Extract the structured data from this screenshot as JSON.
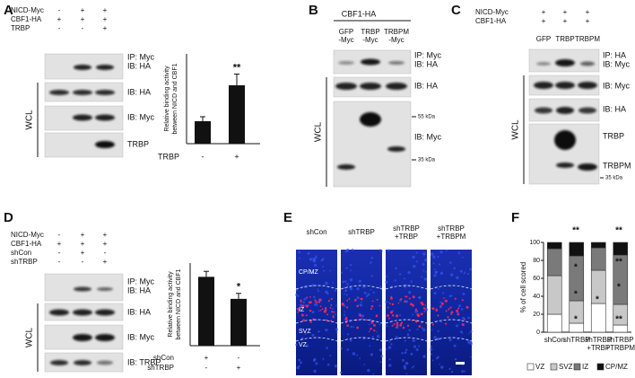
{
  "panel_a": {
    "label": "A",
    "treatments": [
      {
        "name": "NICD-Myc",
        "signs": [
          "-",
          "+",
          "+"
        ]
      },
      {
        "name": "CBF1-HA",
        "signs": [
          "+",
          "+",
          "+"
        ]
      },
      {
        "name": "TRBP",
        "signs": [
          "-",
          "-",
          "+"
        ]
      }
    ],
    "blots": [
      [
        "IP: Myc",
        "IB: HA"
      ],
      [
        "IB: HA"
      ],
      [
        "IB: Myc"
      ],
      [
        "TRBP"
      ]
    ],
    "wcl": "WCL",
    "chart_data": {
      "type": "bar",
      "y_label": [
        "Relative binding activity",
        "between NICD and CBF1"
      ],
      "x_label": "TRBP",
      "categories": [
        "-",
        "+"
      ],
      "values": [
        1,
        2.6
      ],
      "errors": [
        0.2,
        0.5
      ],
      "annotation": "**",
      "color": "#111111",
      "ylim": [
        0,
        4
      ]
    }
  },
  "panel_b": {
    "label": "B",
    "header": "CBF1-HA",
    "lanes": [
      [
        "GFP",
        "-Myc"
      ],
      [
        "TRBP",
        "-Myc"
      ],
      [
        "TRBPM",
        "-Myc"
      ]
    ],
    "blots": [
      [
        "IP: Myc",
        "IB: HA"
      ],
      [
        "IB: HA"
      ],
      [
        "IB: Myc"
      ]
    ],
    "markers": [
      "55 kDa",
      "35 kDa"
    ],
    "wcl": "WCL"
  },
  "panel_c": {
    "label": "C",
    "treatments": [
      {
        "name": "NICD-Myc",
        "signs": [
          "+",
          "+",
          "+"
        ]
      },
      {
        "name": "CBF1-HA",
        "signs": [
          "+",
          "+",
          "+"
        ]
      }
    ],
    "lanes": [
      "GFP",
      "TRBP",
      "TRBPM"
    ],
    "blots": [
      [
        "IP: HA",
        "IB: Myc"
      ],
      [
        "IB: Myc"
      ],
      [
        "IB: HA"
      ],
      [
        "TRBP",
        "TRBPM"
      ]
    ],
    "markers": [
      "35 kDa"
    ],
    "wcl": "WCL"
  },
  "panel_d": {
    "label": "D",
    "treatments": [
      {
        "name": "NICD-Myc",
        "signs": [
          "-",
          "+",
          "+"
        ]
      },
      {
        "name": "CBF1-HA",
        "signs": [
          "+",
          "+",
          "+"
        ]
      },
      {
        "name": "shCon",
        "signs": [
          "-",
          "+",
          "-"
        ]
      },
      {
        "name": "shTRBP",
        "signs": [
          "-",
          "-",
          "+"
        ]
      }
    ],
    "blots": [
      [
        "IP: Myc",
        "IB: HA"
      ],
      [
        "IB: HA"
      ],
      [
        "IB: Myc"
      ],
      [
        "IB: TRBP"
      ]
    ],
    "wcl": "WCL",
    "chart_data": {
      "type": "bar",
      "y_label": [
        "Relative binding activity",
        "between NICD and CBF1"
      ],
      "x_rows": [
        {
          "name": "shCon",
          "signs": [
            "+",
            "-"
          ]
        },
        {
          "name": "shTRBP",
          "signs": [
            "-",
            "+"
          ]
        }
      ],
      "values": [
        1,
        0.68
      ],
      "errors": [
        0.08,
        0.08
      ],
      "annotation": "*",
      "color": "#111111",
      "ylim": [
        0,
        1.2
      ]
    }
  },
  "panel_e": {
    "label": "E",
    "conditions": [
      [
        "shCon"
      ],
      [
        "shTRBP"
      ],
      [
        "shTRBP",
        "+TRBP"
      ],
      [
        "shTRBP",
        "+TRBPM"
      ]
    ],
    "layers": [
      "CP/MZ",
      "IZ",
      "SVZ",
      "VZ"
    ]
  },
  "panel_f": {
    "label": "F",
    "chart_data": {
      "type": "stacked_bar",
      "y_label": "% of cell scored",
      "categories": [
        [
          "shCon"
        ],
        [
          "shTRBP"
        ],
        [
          "shTRBP",
          "+TRBP"
        ],
        [
          "shTRBP",
          "+TRBPM"
        ]
      ],
      "series": [
        {
          "name": "VZ",
          "color": "#ffffff",
          "values": [
            20,
            10,
            32,
            8
          ]
        },
        {
          "name": "SVZ",
          "color": "#c8c8c8",
          "values": [
            43,
            25,
            37,
            23
          ]
        },
        {
          "name": "IZ",
          "color": "#7a7a7a",
          "values": [
            30,
            50,
            25,
            55
          ]
        },
        {
          "name": "CP/MZ",
          "color": "#111111",
          "values": [
            7,
            15,
            6,
            14
          ]
        }
      ],
      "annotations": [
        "**",
        "**",
        "*",
        "*",
        "*",
        "*",
        "**",
        "*",
        "**"
      ],
      "ylim": [
        0,
        100
      ],
      "yticks": [
        0,
        20,
        40,
        60,
        80,
        100
      ]
    }
  }
}
